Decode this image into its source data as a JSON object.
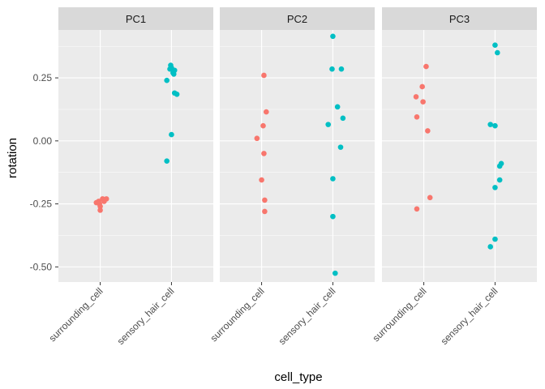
{
  "chart_data": {
    "type": "scatter",
    "title": "",
    "xlabel": "cell_type",
    "ylabel": "rotation",
    "facets": [
      "PC1",
      "PC2",
      "PC3"
    ],
    "categories": [
      "surrounding_cell",
      "sensory_hair_cell"
    ],
    "ylim": [
      -0.56,
      0.44
    ],
    "yticks": [
      0.25,
      0.0,
      -0.25,
      -0.5
    ],
    "ytick_labels": [
      "0.25",
      "0.00",
      "-0.25",
      "-0.50"
    ],
    "grid": true,
    "legend": "none",
    "colors": {
      "surrounding_cell": "#f8766d",
      "sensory_hair_cell": "#00bfc4",
      "panel_bg": "#ebebeb",
      "strip_bg": "#d9d9d9",
      "grid": "#ffffff"
    },
    "points": {
      "PC1": {
        "surrounding_cell": [
          {
            "dx": -0.05,
            "y": -0.245
          },
          {
            "dx": -0.02,
            "y": -0.24
          },
          {
            "dx": 0.03,
            "y": -0.23
          },
          {
            "dx": 0.08,
            "y": -0.23
          },
          {
            "dx": -0.01,
            "y": -0.25
          },
          {
            "dx": 0.0,
            "y": -0.26
          },
          {
            "dx": 0.0,
            "y": -0.275
          },
          {
            "dx": 0.05,
            "y": -0.24
          }
        ],
        "sensory_hair_cell": [
          {
            "dx": -0.06,
            "y": 0.24
          },
          {
            "dx": -0.02,
            "y": 0.285
          },
          {
            "dx": -0.01,
            "y": 0.3
          },
          {
            "dx": 0.0,
            "y": 0.29
          },
          {
            "dx": 0.02,
            "y": 0.27
          },
          {
            "dx": 0.04,
            "y": 0.28
          },
          {
            "dx": 0.03,
            "y": 0.265
          },
          {
            "dx": 0.04,
            "y": 0.19
          },
          {
            "dx": 0.07,
            "y": 0.185
          },
          {
            "dx": 0.0,
            "y": 0.025
          },
          {
            "dx": -0.06,
            "y": -0.08
          }
        ]
      },
      "PC2": {
        "surrounding_cell": [
          {
            "dx": 0.03,
            "y": 0.26
          },
          {
            "dx": 0.06,
            "y": 0.115
          },
          {
            "dx": 0.02,
            "y": 0.06
          },
          {
            "dx": -0.06,
            "y": 0.01
          },
          {
            "dx": 0.03,
            "y": -0.05
          },
          {
            "dx": 0.0,
            "y": -0.155
          },
          {
            "dx": 0.04,
            "y": -0.235
          },
          {
            "dx": 0.04,
            "y": -0.28
          }
        ],
        "sensory_hair_cell": [
          {
            "dx": 0.0,
            "y": 0.415
          },
          {
            "dx": -0.01,
            "y": 0.285
          },
          {
            "dx": 0.11,
            "y": 0.285
          },
          {
            "dx": 0.06,
            "y": 0.135
          },
          {
            "dx": 0.13,
            "y": 0.09
          },
          {
            "dx": -0.06,
            "y": 0.065
          },
          {
            "dx": 0.1,
            "y": -0.025
          },
          {
            "dx": 0.0,
            "y": -0.15
          },
          {
            "dx": 0.0,
            "y": -0.3
          },
          {
            "dx": 0.03,
            "y": -0.525
          }
        ]
      },
      "PC3": {
        "surrounding_cell": [
          {
            "dx": 0.03,
            "y": 0.295
          },
          {
            "dx": -0.02,
            "y": 0.215
          },
          {
            "dx": -0.1,
            "y": 0.175
          },
          {
            "dx": -0.01,
            "y": 0.155
          },
          {
            "dx": -0.09,
            "y": 0.095
          },
          {
            "dx": 0.05,
            "y": 0.04
          },
          {
            "dx": 0.08,
            "y": -0.225
          },
          {
            "dx": -0.09,
            "y": -0.27
          }
        ],
        "sensory_hair_cell": [
          {
            "dx": 0.0,
            "y": 0.38
          },
          {
            "dx": 0.03,
            "y": 0.35
          },
          {
            "dx": -0.06,
            "y": 0.065
          },
          {
            "dx": 0.0,
            "y": 0.06
          },
          {
            "dx": 0.08,
            "y": -0.09
          },
          {
            "dx": 0.06,
            "y": -0.1
          },
          {
            "dx": 0.06,
            "y": -0.155
          },
          {
            "dx": 0.0,
            "y": -0.185
          },
          {
            "dx": 0.0,
            "y": -0.39
          },
          {
            "dx": -0.06,
            "y": -0.42
          }
        ]
      }
    }
  }
}
